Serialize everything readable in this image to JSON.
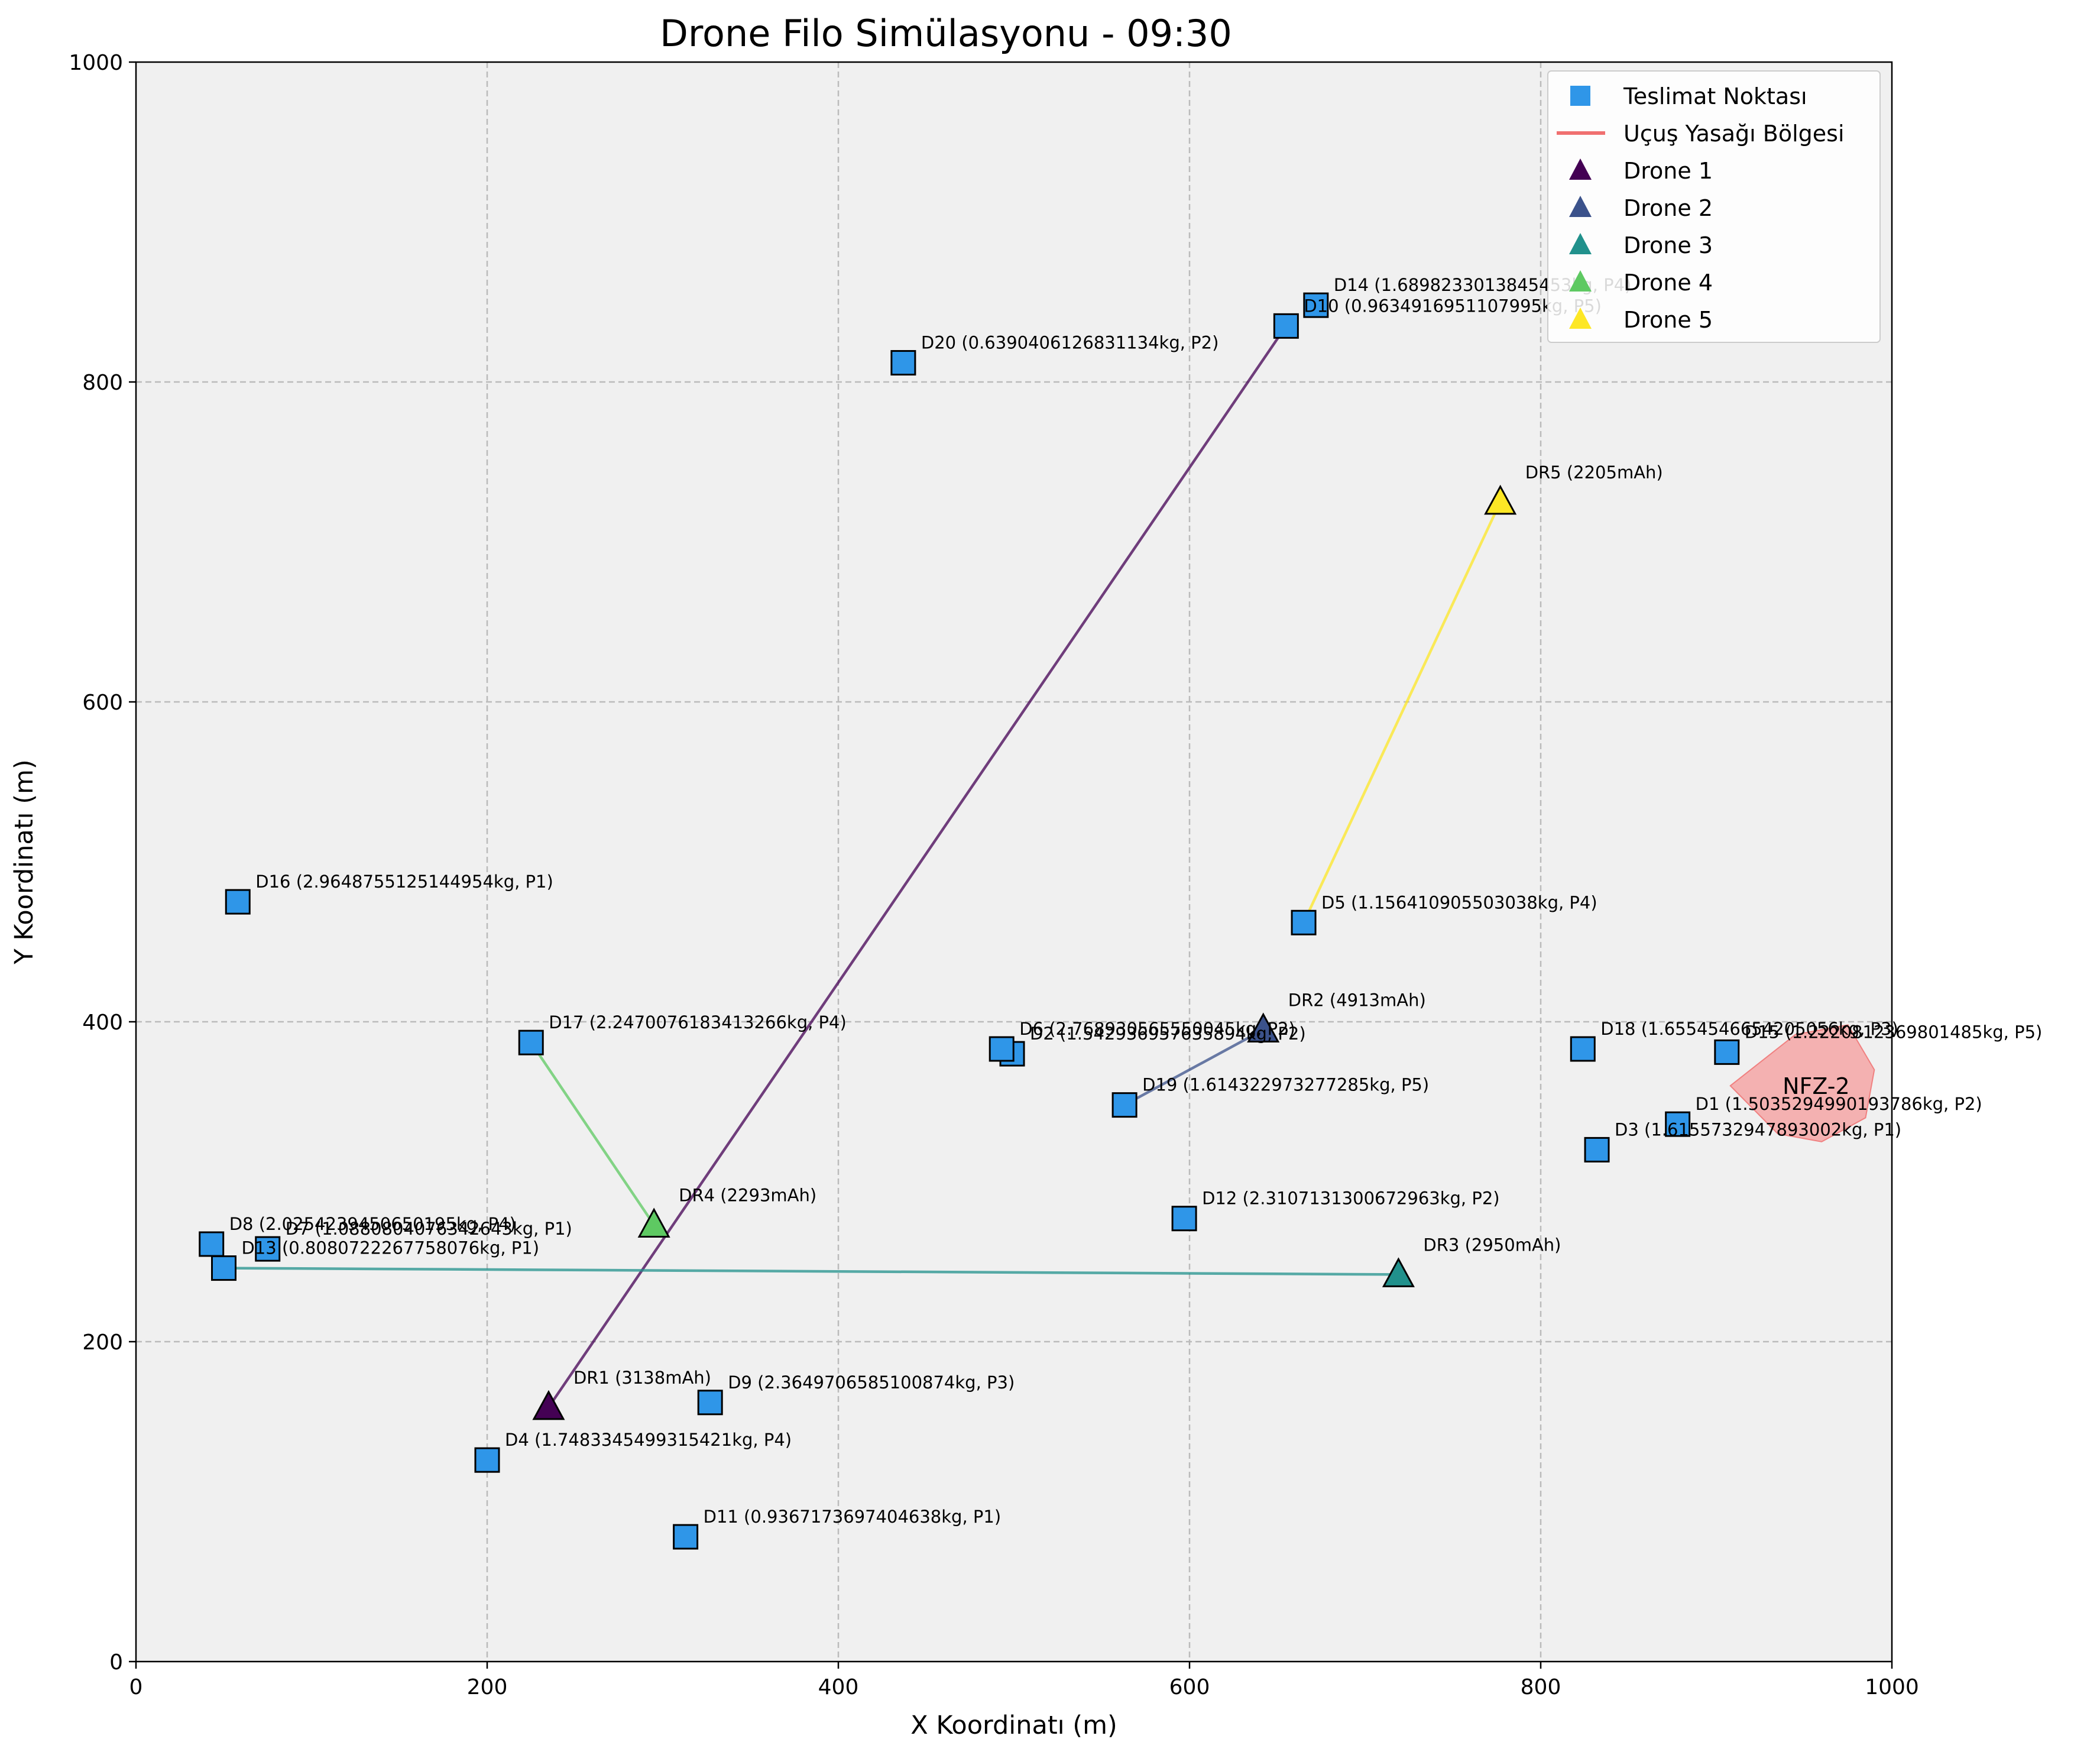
{
  "chart_data": {
    "type": "scatter",
    "title": "Drone Filo Simülasyonu - 09:30",
    "xlabel": "X Koordinatı (m)",
    "ylabel": "Y Koordinatı (m)",
    "xlim": [
      0,
      1000
    ],
    "ylim": [
      0,
      1000
    ],
    "xticks": [
      0,
      200,
      400,
      600,
      800,
      1000
    ],
    "yticks": [
      0,
      200,
      400,
      600,
      800,
      1000
    ],
    "grid": true,
    "legend_position": "top-right",
    "legend": [
      {
        "label": "Teslimat Noktası",
        "marker": "square",
        "color": "#2f96e8"
      },
      {
        "label": "Uçuş Yasağı Bölgesi",
        "marker": "line",
        "color": "#f07070"
      },
      {
        "label": "Drone 1",
        "marker": "triangle",
        "color": "#440154"
      },
      {
        "label": "Drone 2",
        "marker": "triangle",
        "color": "#3b528b"
      },
      {
        "label": "Drone 3",
        "marker": "triangle",
        "color": "#21918c"
      },
      {
        "label": "Drone 4",
        "marker": "triangle",
        "color": "#5ec962"
      },
      {
        "label": "Drone 5",
        "marker": "triangle",
        "color": "#fde725"
      }
    ],
    "deliveries": [
      {
        "id": "D1",
        "x": 878,
        "y": 336,
        "label": "D1 (1.5035294990193786kg, P2)"
      },
      {
        "id": "D2",
        "x": 499,
        "y": 380,
        "label": "D2 (1.542936957635894kg, P2)"
      },
      {
        "id": "D3",
        "x": 832,
        "y": 320,
        "label": "D3 (1.6155732947893002kg, P1)"
      },
      {
        "id": "D4",
        "x": 200,
        "y": 126,
        "label": "D4 (1.7483345499315421kg, P4)"
      },
      {
        "id": "D5",
        "x": 665,
        "y": 462,
        "label": "D5 (1.156410905503038kg, P4)"
      },
      {
        "id": "D6",
        "x": 493,
        "y": 383,
        "label": "D6 (2.768930565550045kg, P2)"
      },
      {
        "id": "D7",
        "x": 75,
        "y": 258,
        "label": "D7 (1.0880804076342643kg, P1)"
      },
      {
        "id": "D8",
        "x": 43,
        "y": 261,
        "label": "D8 (2.0254239450650195kg, P4)"
      },
      {
        "id": "D9",
        "x": 327,
        "y": 162,
        "label": "D9 (2.3649706585100874kg, P3)"
      },
      {
        "id": "D10",
        "x": 655,
        "y": 835,
        "label": "D10 (0.9634916951107995kg, P5)"
      },
      {
        "id": "D11",
        "x": 313,
        "y": 78,
        "label": "D11 (0.9367173697404638kg, P1)"
      },
      {
        "id": "D12",
        "x": 597,
        "y": 277,
        "label": "D12 (2.3107131300672963kg, P2)"
      },
      {
        "id": "D13",
        "x": 50,
        "y": 246,
        "label": "D13 (0.8080722267758076kg, P1)"
      },
      {
        "id": "D14",
        "x": 672,
        "y": 848,
        "label": "D14 (1.6898233013845453kg, P4)"
      },
      {
        "id": "D15",
        "x": 906,
        "y": 381,
        "label": "D15 (1.2220812369801485kg, P5)"
      },
      {
        "id": "D16",
        "x": 58,
        "y": 475,
        "label": "D16 (2.9648755125144954kg, P1)"
      },
      {
        "id": "D17",
        "x": 225,
        "y": 387,
        "label": "D17 (2.2470076183413266kg, P4)"
      },
      {
        "id": "D18",
        "x": 824,
        "y": 383,
        "label": "D18 (1.6554546654205056kg, P3)"
      },
      {
        "id": "D19",
        "x": 563,
        "y": 348,
        "label": "D19 (1.614322973277285kg, P5)"
      },
      {
        "id": "D20",
        "x": 437,
        "y": 812,
        "label": "D20 (0.6390406126831134kg, P2)"
      }
    ],
    "drones": [
      {
        "name": "Drone 1",
        "id": "DR1",
        "x": 235,
        "y": 159,
        "label": "DR1 (3138mAh)",
        "color": "#440154",
        "path_to": [
          655,
          835
        ]
      },
      {
        "name": "Drone 2",
        "id": "DR2",
        "x": 642,
        "y": 395,
        "label": "DR2 (4913mAh)",
        "color": "#3b528b",
        "path_to": [
          563,
          348
        ]
      },
      {
        "name": "Drone 3",
        "id": "DR3",
        "x": 719,
        "y": 242,
        "label": "DR3 (2950mAh)",
        "color": "#21918c",
        "path_to": [
          50,
          246
        ]
      },
      {
        "name": "Drone 4",
        "id": "DR4",
        "x": 295,
        "y": 273,
        "label": "DR4 (2293mAh)",
        "color": "#5ec962",
        "path_to": [
          225,
          387
        ]
      },
      {
        "name": "Drone 5",
        "id": "DR5",
        "x": 777,
        "y": 725,
        "label": "DR5 (2205mAh)",
        "color": "#fde725",
        "path_to": [
          665,
          462
        ]
      }
    ],
    "no_fly_zones": [
      {
        "label": "NFZ-2",
        "polygon": [
          [
            908,
            360
          ],
          [
            945,
            392
          ],
          [
            975,
            398
          ],
          [
            990,
            370
          ],
          [
            985,
            340
          ],
          [
            960,
            325
          ],
          [
            935,
            330
          ]
        ]
      }
    ]
  }
}
